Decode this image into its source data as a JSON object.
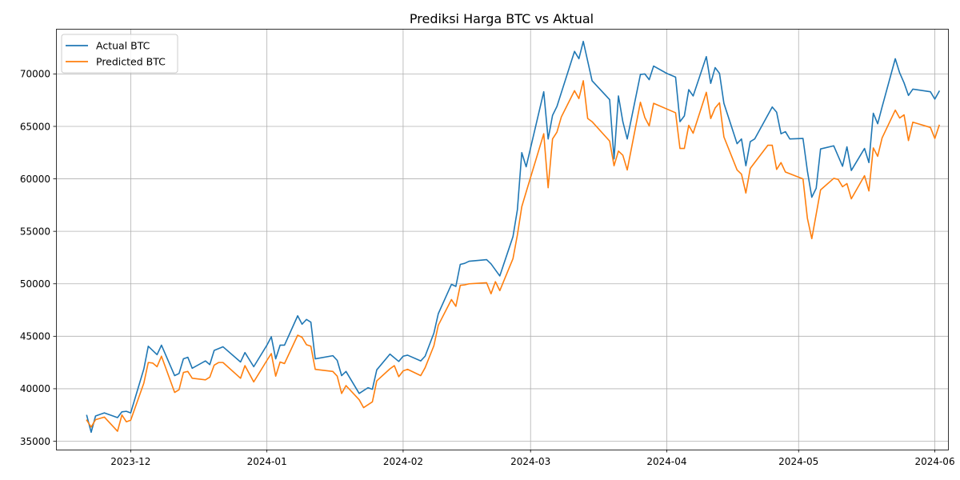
{
  "chart_data": {
    "type": "line",
    "title": "Prediksi Harga BTC vs Aktual",
    "xlabel": "",
    "ylabel": "",
    "x_ticks": [
      "2023-12",
      "2024-01",
      "2024-02",
      "2024-03",
      "2024-04",
      "2024-05",
      "2024-06"
    ],
    "y_ticks": [
      35000,
      40000,
      45000,
      50000,
      55000,
      60000,
      65000,
      70000
    ],
    "xlim": [
      "2023-11-14",
      "2024-06-04"
    ],
    "ylim": [
      34200,
      74300
    ],
    "grid": true,
    "legend_position": "top-left",
    "series": [
      {
        "name": "Actual BTC",
        "color": "#1f77b4",
        "points": [
          [
            "2023-11-21",
            37450
          ],
          [
            "2023-11-22",
            35850
          ],
          [
            "2023-11-23",
            37400
          ],
          [
            "2023-11-25",
            37700
          ],
          [
            "2023-11-28",
            37250
          ],
          [
            "2023-11-29",
            37800
          ],
          [
            "2023-11-30",
            37850
          ],
          [
            "2023-12-01",
            37700
          ],
          [
            "2023-12-04",
            41900
          ],
          [
            "2023-12-05",
            44050
          ],
          [
            "2023-12-07",
            43250
          ],
          [
            "2023-12-08",
            44150
          ],
          [
            "2023-12-11",
            41250
          ],
          [
            "2023-12-12",
            41450
          ],
          [
            "2023-12-13",
            42850
          ],
          [
            "2023-12-14",
            43000
          ],
          [
            "2023-12-15",
            41950
          ],
          [
            "2023-12-18",
            42650
          ],
          [
            "2023-12-19",
            42300
          ],
          [
            "2023-12-20",
            43650
          ],
          [
            "2023-12-22",
            44000
          ],
          [
            "2023-12-26",
            42550
          ],
          [
            "2023-12-27",
            43450
          ],
          [
            "2023-12-29",
            42100
          ],
          [
            "2024-01-01",
            44150
          ],
          [
            "2024-01-02",
            44950
          ],
          [
            "2024-01-03",
            42850
          ],
          [
            "2024-01-04",
            44150
          ],
          [
            "2024-01-05",
            44150
          ],
          [
            "2024-01-08",
            46950
          ],
          [
            "2024-01-09",
            46150
          ],
          [
            "2024-01-10",
            46600
          ],
          [
            "2024-01-11",
            46350
          ],
          [
            "2024-01-12",
            42850
          ],
          [
            "2024-01-16",
            43150
          ],
          [
            "2024-01-17",
            42700
          ],
          [
            "2024-01-18",
            41250
          ],
          [
            "2024-01-19",
            41650
          ],
          [
            "2024-01-22",
            39550
          ],
          [
            "2024-01-24",
            40100
          ],
          [
            "2024-01-25",
            39950
          ],
          [
            "2024-01-26",
            41800
          ],
          [
            "2024-01-29",
            43300
          ],
          [
            "2024-01-31",
            42600
          ],
          [
            "2024-02-01",
            43100
          ],
          [
            "2024-02-02",
            43200
          ],
          [
            "2024-02-05",
            42650
          ],
          [
            "2024-02-06",
            43100
          ],
          [
            "2024-02-08",
            45300
          ],
          [
            "2024-02-09",
            47150
          ],
          [
            "2024-02-12",
            49950
          ],
          [
            "2024-02-13",
            49750
          ],
          [
            "2024-02-14",
            51850
          ],
          [
            "2024-02-15",
            51950
          ],
          [
            "2024-02-16",
            52150
          ],
          [
            "2024-02-20",
            52300
          ],
          [
            "2024-02-21",
            51900
          ],
          [
            "2024-02-23",
            50750
          ],
          [
            "2024-02-26",
            54500
          ],
          [
            "2024-02-27",
            57050
          ],
          [
            "2024-02-28",
            62500
          ],
          [
            "2024-02-29",
            61150
          ],
          [
            "2024-03-04",
            68300
          ],
          [
            "2024-03-05",
            63800
          ],
          [
            "2024-03-06",
            66050
          ],
          [
            "2024-03-07",
            66900
          ],
          [
            "2024-03-11",
            72150
          ],
          [
            "2024-03-12",
            71450
          ],
          [
            "2024-03-13",
            73100
          ],
          [
            "2024-03-15",
            69350
          ],
          [
            "2024-03-19",
            67550
          ],
          [
            "2024-03-20",
            61900
          ],
          [
            "2024-03-21",
            67900
          ],
          [
            "2024-03-22",
            65450
          ],
          [
            "2024-03-23",
            63800
          ],
          [
            "2024-03-26",
            69950
          ],
          [
            "2024-03-27",
            70000
          ],
          [
            "2024-03-28",
            69450
          ],
          [
            "2024-03-29",
            70750
          ],
          [
            "2024-04-01",
            70050
          ],
          [
            "2024-04-03",
            69700
          ],
          [
            "2024-04-04",
            65450
          ],
          [
            "2024-04-05",
            66000
          ],
          [
            "2024-04-06",
            68500
          ],
          [
            "2024-04-07",
            67900
          ],
          [
            "2024-04-10",
            71650
          ],
          [
            "2024-04-11",
            69100
          ],
          [
            "2024-04-12",
            70600
          ],
          [
            "2024-04-13",
            70050
          ],
          [
            "2024-04-14",
            67200
          ],
          [
            "2024-04-17",
            63350
          ],
          [
            "2024-04-18",
            63800
          ],
          [
            "2024-04-19",
            61250
          ],
          [
            "2024-04-20",
            63550
          ],
          [
            "2024-04-21",
            63800
          ],
          [
            "2024-04-25",
            66850
          ],
          [
            "2024-04-26",
            66350
          ],
          [
            "2024-04-27",
            64300
          ],
          [
            "2024-04-28",
            64500
          ],
          [
            "2024-04-29",
            63800
          ],
          [
            "2024-05-02",
            63850
          ],
          [
            "2024-05-03",
            60750
          ],
          [
            "2024-05-04",
            58250
          ],
          [
            "2024-05-05",
            59100
          ],
          [
            "2024-05-06",
            62850
          ],
          [
            "2024-05-09",
            63150
          ],
          [
            "2024-05-11",
            61200
          ],
          [
            "2024-05-12",
            63050
          ],
          [
            "2024-05-13",
            60800
          ],
          [
            "2024-05-16",
            62900
          ],
          [
            "2024-05-17",
            61550
          ],
          [
            "2024-05-18",
            66250
          ],
          [
            "2024-05-19",
            65250
          ],
          [
            "2024-05-20",
            66850
          ],
          [
            "2024-05-23",
            71450
          ],
          [
            "2024-05-24",
            70100
          ],
          [
            "2024-05-25",
            69150
          ],
          [
            "2024-05-26",
            67950
          ],
          [
            "2024-05-27",
            68550
          ],
          [
            "2024-05-31",
            68300
          ],
          [
            "2024-06-01",
            67600
          ],
          [
            "2024-06-02",
            68350
          ]
        ]
      },
      {
        "name": "Predicted BTC",
        "color": "#ff7f0e",
        "points": [
          [
            "2023-11-21",
            37000
          ],
          [
            "2023-11-22",
            36350
          ],
          [
            "2023-11-23",
            37050
          ],
          [
            "2023-11-25",
            37300
          ],
          [
            "2023-11-28",
            35950
          ],
          [
            "2023-11-29",
            37500
          ],
          [
            "2023-11-30",
            36850
          ],
          [
            "2023-12-01",
            37000
          ],
          [
            "2023-12-04",
            40550
          ],
          [
            "2023-12-05",
            42500
          ],
          [
            "2023-12-06",
            42450
          ],
          [
            "2023-12-07",
            42100
          ],
          [
            "2023-12-08",
            43100
          ],
          [
            "2023-12-11",
            39650
          ],
          [
            "2023-12-12",
            39900
          ],
          [
            "2023-12-13",
            41550
          ],
          [
            "2023-12-14",
            41650
          ],
          [
            "2023-12-15",
            41000
          ],
          [
            "2023-12-18",
            40850
          ],
          [
            "2023-12-19",
            41100
          ],
          [
            "2023-12-20",
            42250
          ],
          [
            "2023-12-21",
            42500
          ],
          [
            "2023-12-22",
            42500
          ],
          [
            "2023-12-26",
            41000
          ],
          [
            "2023-12-27",
            42200
          ],
          [
            "2023-12-29",
            40650
          ],
          [
            "2024-01-01",
            42700
          ],
          [
            "2024-01-02",
            43350
          ],
          [
            "2024-01-03",
            41200
          ],
          [
            "2024-01-04",
            42550
          ],
          [
            "2024-01-05",
            42400
          ],
          [
            "2024-01-08",
            45100
          ],
          [
            "2024-01-09",
            44900
          ],
          [
            "2024-01-10",
            44200
          ],
          [
            "2024-01-11",
            44050
          ],
          [
            "2024-01-12",
            41850
          ],
          [
            "2024-01-16",
            41650
          ],
          [
            "2024-01-17",
            41200
          ],
          [
            "2024-01-18",
            39550
          ],
          [
            "2024-01-19",
            40300
          ],
          [
            "2024-01-22",
            38950
          ],
          [
            "2024-01-23",
            38200
          ],
          [
            "2024-01-25",
            38750
          ],
          [
            "2024-01-26",
            40750
          ],
          [
            "2024-01-29",
            41900
          ],
          [
            "2024-01-30",
            42200
          ],
          [
            "2024-01-31",
            41150
          ],
          [
            "2024-02-01",
            41700
          ],
          [
            "2024-02-02",
            41850
          ],
          [
            "2024-02-05",
            41250
          ],
          [
            "2024-02-06",
            42000
          ],
          [
            "2024-02-08",
            44100
          ],
          [
            "2024-02-09",
            46050
          ],
          [
            "2024-02-12",
            48500
          ],
          [
            "2024-02-13",
            47850
          ],
          [
            "2024-02-14",
            49850
          ],
          [
            "2024-02-15",
            49900
          ],
          [
            "2024-02-16",
            50000
          ],
          [
            "2024-02-20",
            50100
          ],
          [
            "2024-02-21",
            49050
          ],
          [
            "2024-02-22",
            50200
          ],
          [
            "2024-02-23",
            49350
          ],
          [
            "2024-02-26",
            52400
          ],
          [
            "2024-02-27",
            54650
          ],
          [
            "2024-02-28",
            57350
          ],
          [
            "2024-02-29",
            58750
          ],
          [
            "2024-03-04",
            64300
          ],
          [
            "2024-03-05",
            59150
          ],
          [
            "2024-03-06",
            63800
          ],
          [
            "2024-03-07",
            64450
          ],
          [
            "2024-03-08",
            65900
          ],
          [
            "2024-03-11",
            68400
          ],
          [
            "2024-03-12",
            67650
          ],
          [
            "2024-03-13",
            69350
          ],
          [
            "2024-03-14",
            65750
          ],
          [
            "2024-03-15",
            65450
          ],
          [
            "2024-03-19",
            63600
          ],
          [
            "2024-03-20",
            61250
          ],
          [
            "2024-03-21",
            62650
          ],
          [
            "2024-03-22",
            62250
          ],
          [
            "2024-03-23",
            60850
          ],
          [
            "2024-03-26",
            67300
          ],
          [
            "2024-03-27",
            65850
          ],
          [
            "2024-03-28",
            65050
          ],
          [
            "2024-03-29",
            67200
          ],
          [
            "2024-04-03",
            66300
          ],
          [
            "2024-04-04",
            62900
          ],
          [
            "2024-04-05",
            62900
          ],
          [
            "2024-04-06",
            65100
          ],
          [
            "2024-04-07",
            64350
          ],
          [
            "2024-04-10",
            68250
          ],
          [
            "2024-04-11",
            65750
          ],
          [
            "2024-04-12",
            66750
          ],
          [
            "2024-04-13",
            67250
          ],
          [
            "2024-04-14",
            64000
          ],
          [
            "2024-04-17",
            60850
          ],
          [
            "2024-04-18",
            60450
          ],
          [
            "2024-04-19",
            58650
          ],
          [
            "2024-04-20",
            61000
          ],
          [
            "2024-04-21",
            61550
          ],
          [
            "2024-04-24",
            63200
          ],
          [
            "2024-04-25",
            63200
          ],
          [
            "2024-04-26",
            60900
          ],
          [
            "2024-04-27",
            61550
          ],
          [
            "2024-04-28",
            60650
          ],
          [
            "2024-05-02",
            60000
          ],
          [
            "2024-05-03",
            56250
          ],
          [
            "2024-05-04",
            54300
          ],
          [
            "2024-05-06",
            58950
          ],
          [
            "2024-05-09",
            60050
          ],
          [
            "2024-05-10",
            59950
          ],
          [
            "2024-05-11",
            59250
          ],
          [
            "2024-05-12",
            59550
          ],
          [
            "2024-05-13",
            58100
          ],
          [
            "2024-05-16",
            60300
          ],
          [
            "2024-05-17",
            58850
          ],
          [
            "2024-05-18",
            62950
          ],
          [
            "2024-05-19",
            62150
          ],
          [
            "2024-05-20",
            63900
          ],
          [
            "2024-05-23",
            66550
          ],
          [
            "2024-05-24",
            65800
          ],
          [
            "2024-05-25",
            66100
          ],
          [
            "2024-05-26",
            63650
          ],
          [
            "2024-05-27",
            65400
          ],
          [
            "2024-05-31",
            64900
          ],
          [
            "2024-06-01",
            63850
          ],
          [
            "2024-06-02",
            65100
          ]
        ]
      }
    ]
  }
}
